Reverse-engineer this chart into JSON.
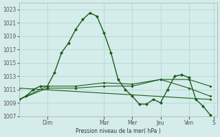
{
  "background_color": "#d4ecea",
  "grid_color": "#b0d8d4",
  "line_color": "#1a5c1a",
  "xlabel": "Pression niveau de la mer( hPa )",
  "ylim": [
    1007,
    1024
  ],
  "yticks": [
    1007,
    1009,
    1011,
    1013,
    1015,
    1017,
    1019,
    1021,
    1023
  ],
  "day_x_positions": [
    4,
    12,
    16,
    20,
    24,
    27.5
  ],
  "day_labels": [
    "Dim",
    "Mar",
    "Mer",
    "Jeu",
    "Ven",
    "S"
  ],
  "series": [
    {
      "x": [
        0,
        1,
        2,
        3,
        4,
        5,
        6,
        7,
        8,
        9,
        10,
        11,
        12,
        13,
        14,
        15,
        16,
        17,
        18,
        19,
        20,
        21,
        22,
        23,
        24,
        25,
        26,
        27
      ],
      "y": [
        1009.5,
        1010.0,
        1011.0,
        1011.5,
        1011.5,
        1013.5,
        1016.5,
        1018.0,
        1020.0,
        1021.5,
        1022.5,
        1022.0,
        1019.5,
        1016.5,
        1012.5,
        1011.0,
        1010.0,
        1008.8,
        1008.8,
        1009.5,
        1009.0,
        1011.0,
        1013.0,
        1013.2,
        1012.8,
        1009.5,
        1008.5,
        1007.2
      ]
    },
    {
      "x": [
        0,
        4,
        8,
        12,
        16,
        20,
        24,
        27
      ],
      "y": [
        1009.5,
        1011.2,
        1011.2,
        1011.5,
        1011.5,
        1012.5,
        1012.5,
        1011.5
      ]
    },
    {
      "x": [
        0,
        4,
        8,
        12,
        16,
        20,
        24,
        27
      ],
      "y": [
        1009.5,
        1011.5,
        1011.5,
        1012.0,
        1011.8,
        1012.5,
        1011.2,
        1010.0
      ]
    },
    {
      "x": [
        0,
        27
      ],
      "y": [
        1011.2,
        1009.5
      ]
    }
  ]
}
